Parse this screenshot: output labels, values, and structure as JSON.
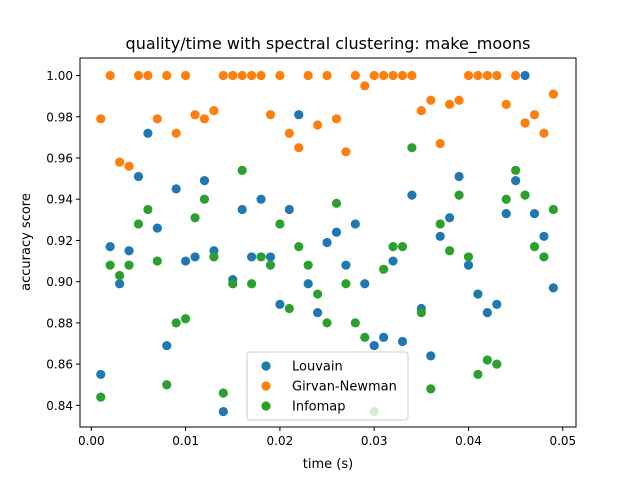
{
  "chart_data": {
    "type": "scatter",
    "title": "quality/time with spectral clustering: make_moons",
    "xlabel": "time (s)",
    "ylabel": "accuracy score",
    "xlim": [
      -0.0012,
      0.0514
    ],
    "ylim": [
      0.8295,
      1.0085
    ],
    "x_ticks": [
      0.0,
      0.01,
      0.02,
      0.03,
      0.04,
      0.05
    ],
    "x_tick_labels": [
      "0.00",
      "0.01",
      "0.02",
      "0.03",
      "0.04",
      "0.05"
    ],
    "y_ticks": [
      0.84,
      0.86,
      0.88,
      0.9,
      0.92,
      0.94,
      0.96,
      0.98,
      1.0
    ],
    "y_tick_labels": [
      "0.84",
      "0.86",
      "0.88",
      "0.90",
      "0.92",
      "0.94",
      "0.96",
      "0.98",
      "1.00"
    ],
    "grid": false,
    "legend_position": "bottom-center",
    "series": [
      {
        "name": "Louvain",
        "color": "#1f77b4",
        "points": [
          [
            0.001,
            0.855
          ],
          [
            0.002,
            0.917
          ],
          [
            0.003,
            0.899
          ],
          [
            0.004,
            0.915
          ],
          [
            0.005,
            0.951
          ],
          [
            0.006,
            0.972
          ],
          [
            0.007,
            0.926
          ],
          [
            0.008,
            0.869
          ],
          [
            0.009,
            0.945
          ],
          [
            0.01,
            0.91
          ],
          [
            0.011,
            0.912
          ],
          [
            0.012,
            0.949
          ],
          [
            0.013,
            0.915
          ],
          [
            0.014,
            0.837
          ],
          [
            0.015,
            0.901
          ],
          [
            0.016,
            0.935
          ],
          [
            0.017,
            0.912
          ],
          [
            0.018,
            0.94
          ],
          [
            0.019,
            0.912
          ],
          [
            0.02,
            0.889
          ],
          [
            0.021,
            0.935
          ],
          [
            0.022,
            0.981
          ],
          [
            0.023,
            0.899
          ],
          [
            0.024,
            0.885
          ],
          [
            0.025,
            0.919
          ],
          [
            0.026,
            0.924
          ],
          [
            0.027,
            0.908
          ],
          [
            0.028,
            0.928
          ],
          [
            0.029,
            0.899
          ],
          [
            0.03,
            0.869
          ],
          [
            0.031,
            0.873
          ],
          [
            0.032,
            0.91
          ],
          [
            0.033,
            0.871
          ],
          [
            0.034,
            0.942
          ],
          [
            0.035,
            0.887
          ],
          [
            0.036,
            0.864
          ],
          [
            0.037,
            0.922
          ],
          [
            0.038,
            0.931
          ],
          [
            0.039,
            0.951
          ],
          [
            0.04,
            0.908
          ],
          [
            0.041,
            0.894
          ],
          [
            0.042,
            0.885
          ],
          [
            0.043,
            0.889
          ],
          [
            0.044,
            0.933
          ],
          [
            0.045,
            0.949
          ],
          [
            0.046,
            1.0
          ],
          [
            0.047,
            0.933
          ],
          [
            0.048,
            0.922
          ],
          [
            0.049,
            0.897
          ]
        ]
      },
      {
        "name": "Girvan-Newman",
        "color": "#ff7f0e",
        "points": [
          [
            0.001,
            0.979
          ],
          [
            0.002,
            1.0
          ],
          [
            0.003,
            0.958
          ],
          [
            0.004,
            0.956
          ],
          [
            0.005,
            1.0
          ],
          [
            0.006,
            1.0
          ],
          [
            0.007,
            0.979
          ],
          [
            0.008,
            1.0
          ],
          [
            0.009,
            0.972
          ],
          [
            0.01,
            1.0
          ],
          [
            0.011,
            0.981
          ],
          [
            0.012,
            0.979
          ],
          [
            0.013,
            0.983
          ],
          [
            0.014,
            1.0
          ],
          [
            0.015,
            1.0
          ],
          [
            0.016,
            1.0
          ],
          [
            0.017,
            1.0
          ],
          [
            0.018,
            1.0
          ],
          [
            0.019,
            0.981
          ],
          [
            0.02,
            1.0
          ],
          [
            0.021,
            0.972
          ],
          [
            0.022,
            0.965
          ],
          [
            0.023,
            1.0
          ],
          [
            0.024,
            0.976
          ],
          [
            0.025,
            1.0
          ],
          [
            0.026,
            0.979
          ],
          [
            0.027,
            0.963
          ],
          [
            0.028,
            1.0
          ],
          [
            0.029,
            0.995
          ],
          [
            0.03,
            1.0
          ],
          [
            0.031,
            1.0
          ],
          [
            0.032,
            1.0
          ],
          [
            0.033,
            1.0
          ],
          [
            0.034,
            1.0
          ],
          [
            0.035,
            0.983
          ],
          [
            0.036,
            0.988
          ],
          [
            0.037,
            0.967
          ],
          [
            0.038,
            0.986
          ],
          [
            0.039,
            0.988
          ],
          [
            0.04,
            1.0
          ],
          [
            0.041,
            1.0
          ],
          [
            0.042,
            1.0
          ],
          [
            0.043,
            1.0
          ],
          [
            0.044,
            0.986
          ],
          [
            0.045,
            1.0
          ],
          [
            0.046,
            0.977
          ],
          [
            0.047,
            0.981
          ],
          [
            0.048,
            0.972
          ],
          [
            0.049,
            0.991
          ]
        ]
      },
      {
        "name": "Infomap",
        "color": "#2ca02c",
        "points": [
          [
            0.001,
            0.844
          ],
          [
            0.002,
            0.908
          ],
          [
            0.003,
            0.903
          ],
          [
            0.004,
            0.908
          ],
          [
            0.005,
            0.928
          ],
          [
            0.006,
            0.935
          ],
          [
            0.007,
            0.91
          ],
          [
            0.008,
            0.85
          ],
          [
            0.009,
            0.88
          ],
          [
            0.01,
            0.882
          ],
          [
            0.011,
            0.931
          ],
          [
            0.012,
            0.94
          ],
          [
            0.013,
            0.912
          ],
          [
            0.014,
            0.846
          ],
          [
            0.015,
            0.899
          ],
          [
            0.016,
            0.954
          ],
          [
            0.017,
            0.899
          ],
          [
            0.018,
            0.912
          ],
          [
            0.019,
            0.908
          ],
          [
            0.02,
            0.928
          ],
          [
            0.021,
            0.887
          ],
          [
            0.022,
            0.917
          ],
          [
            0.023,
            0.908
          ],
          [
            0.024,
            0.894
          ],
          [
            0.025,
            0.88
          ],
          [
            0.026,
            0.938
          ],
          [
            0.027,
            0.899
          ],
          [
            0.028,
            0.88
          ],
          [
            0.029,
            0.873
          ],
          [
            0.03,
            0.837
          ],
          [
            0.031,
            0.906
          ],
          [
            0.032,
            0.917
          ],
          [
            0.033,
            0.917
          ],
          [
            0.034,
            0.965
          ],
          [
            0.035,
            0.885
          ],
          [
            0.036,
            0.848
          ],
          [
            0.037,
            0.928
          ],
          [
            0.038,
            0.915
          ],
          [
            0.039,
            0.942
          ],
          [
            0.04,
            0.912
          ],
          [
            0.041,
            0.855
          ],
          [
            0.042,
            0.862
          ],
          [
            0.043,
            0.86
          ],
          [
            0.044,
            0.94
          ],
          [
            0.045,
            0.954
          ],
          [
            0.046,
            0.942
          ],
          [
            0.047,
            0.917
          ],
          [
            0.048,
            0.912
          ],
          [
            0.049,
            0.935
          ]
        ]
      }
    ]
  }
}
